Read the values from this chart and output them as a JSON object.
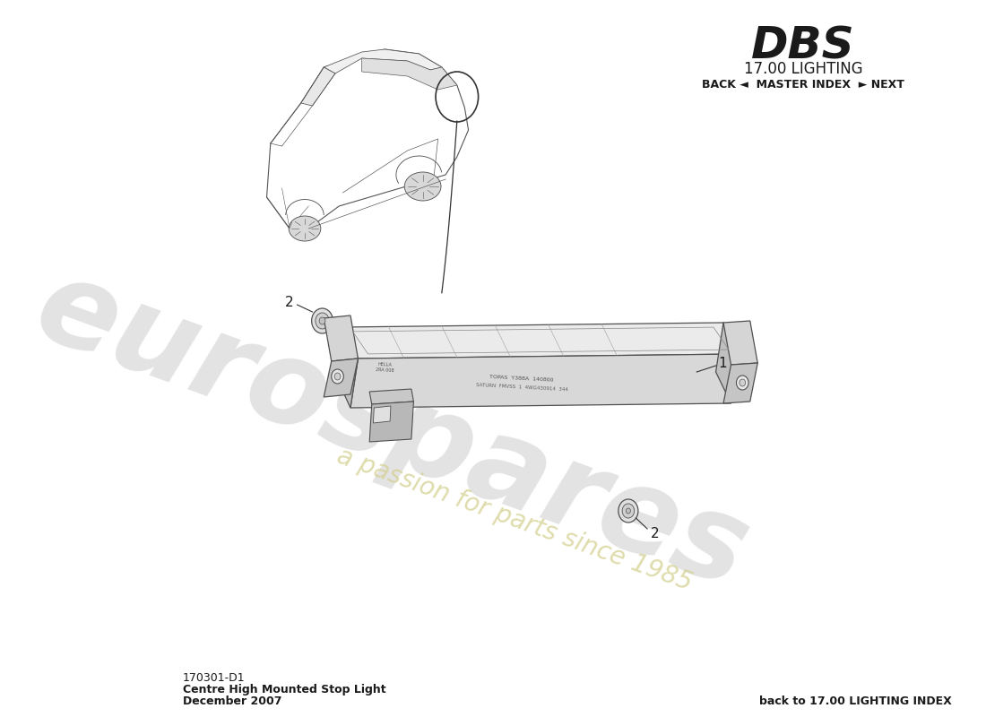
{
  "bg_color": "#ffffff",
  "title_dbs": "DBS",
  "title_section": "17.00 LIGHTING",
  "nav_text": "BACK ◄  MASTER INDEX  ► NEXT",
  "footer_code": "170301-D1",
  "footer_name": "Centre High Mounted Stop Light",
  "footer_date": "December 2007",
  "footer_right": "back to 17.00 LIGHTING INDEX",
  "watermark_line1": "eurospares",
  "watermark_line2": "a passion for parts since 1985",
  "edge_color": "#505050",
  "face_color_top": "#e8e8e8",
  "face_color_front": "#c8c8c8",
  "face_color_side": "#d0d0d0"
}
